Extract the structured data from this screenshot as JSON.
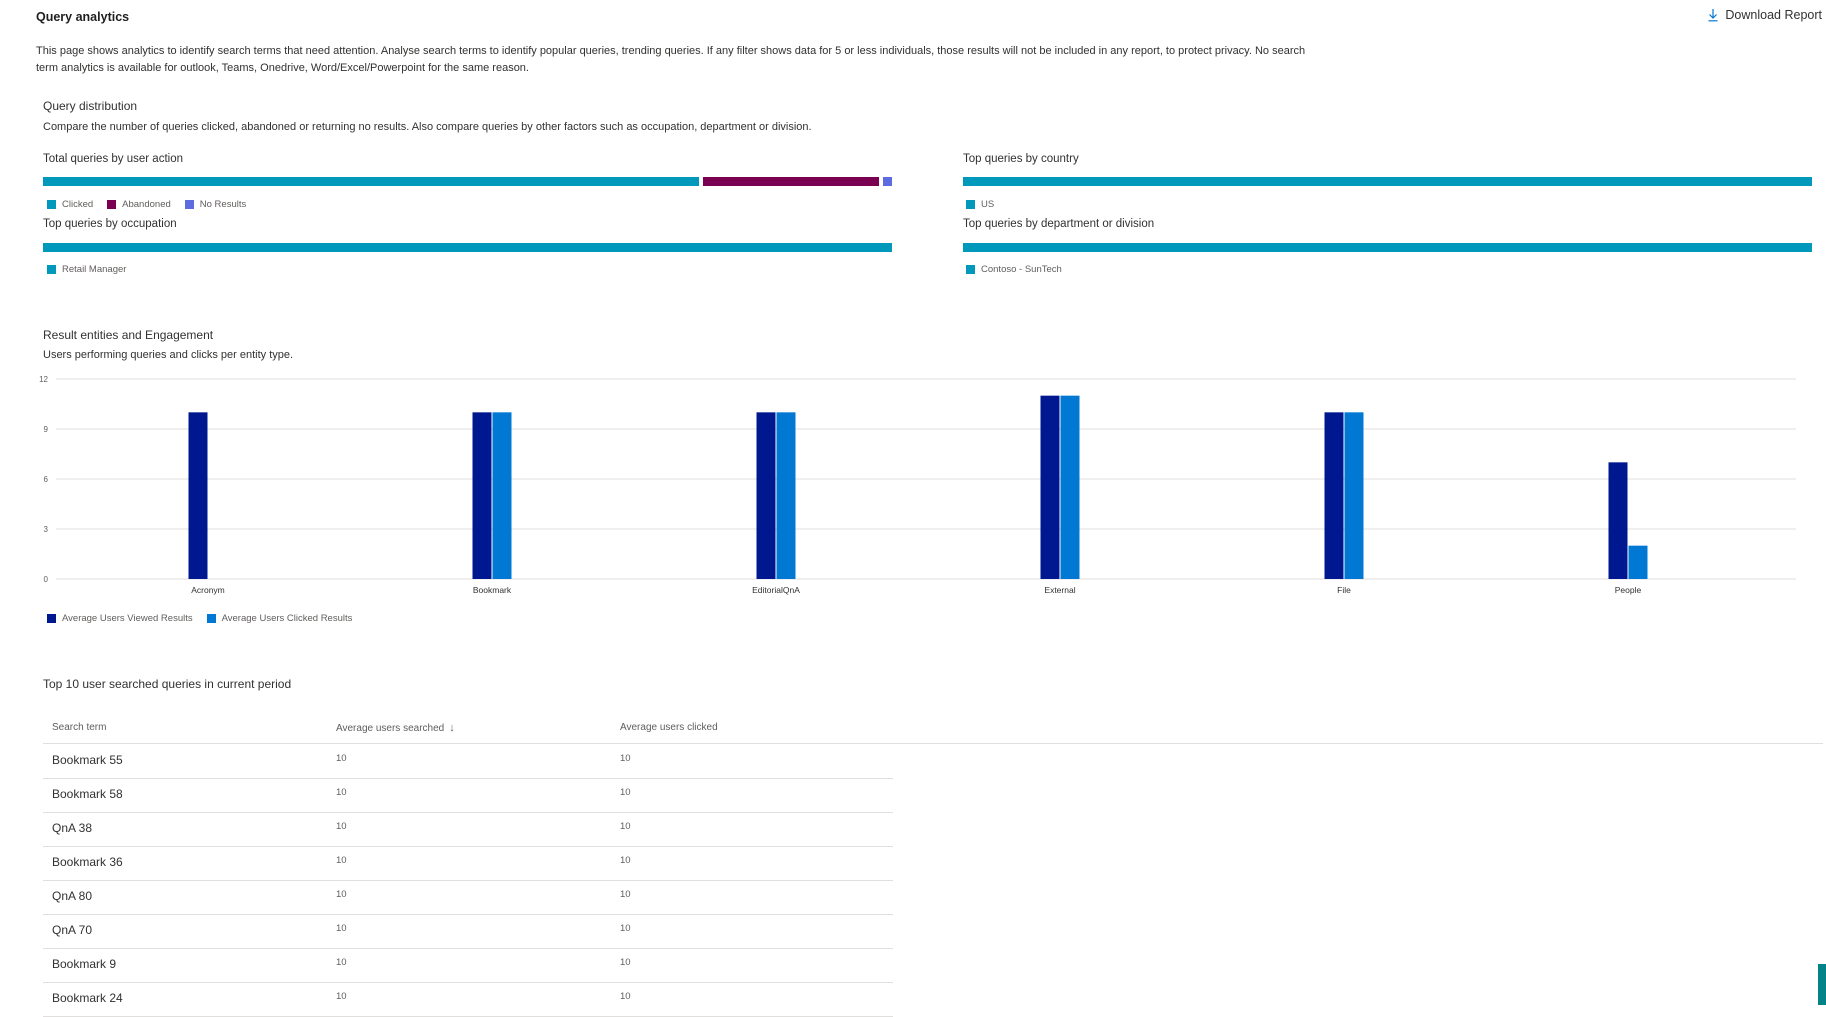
{
  "header": {
    "title": "Query analytics",
    "download_label": "Download Report",
    "download_icon": "download-icon",
    "description": "This page shows analytics to identify search terms that need attention. Analyse search terms to identify popular queries, trending queries. If any filter shows data for 5 or less individuals, those results will not be included in any report, to protect privacy. No search term analytics is available for outlook, Teams, Onedrive, Word/Excel/Powerpoint for the same reason."
  },
  "distribution": {
    "title": "Query distribution",
    "subtitle": "Compare the number of queries clicked, abandoned or returning no results. Also compare queries by other factors such as occupation, department or division.",
    "user_action": {
      "label": "Total queries by user action",
      "segments": [
        {
          "name": "Clicked",
          "share": 0.776,
          "color": "#0099bc"
        },
        {
          "name": "Abandoned",
          "share": 0.208,
          "color": "#7a0051"
        },
        {
          "name": "No Results",
          "share": 0.011,
          "color": "#5c6bdf"
        }
      ]
    },
    "country": {
      "label": "Top queries by country",
      "segments": [
        {
          "name": "US",
          "share": 1.0,
          "color": "#0099bc"
        }
      ]
    },
    "occupation": {
      "label": "Top queries by occupation",
      "segments": [
        {
          "name": "Retail Manager",
          "share": 1.0,
          "color": "#0099bc"
        }
      ]
    },
    "department": {
      "label": "Top queries by department or division",
      "segments": [
        {
          "name": "Contoso - SunTech",
          "share": 1.0,
          "color": "#0099bc"
        }
      ]
    }
  },
  "engagement": {
    "title": "Result entities and Engagement",
    "subtitle": "Users performing queries and clicks per entity type."
  },
  "chart_data": {
    "type": "bar",
    "title": "",
    "xlabel": "",
    "ylabel": "",
    "ylim": [
      0,
      12
    ],
    "yticks": [
      "0",
      "3",
      "6",
      "9",
      "12"
    ],
    "categories": [
      "Acronym",
      "Bookmark",
      "EditorialQnA",
      "External",
      "File",
      "People"
    ],
    "series": [
      {
        "name": "Average Users Viewed Results",
        "color": "#00188f",
        "values": [
          10,
          10,
          10,
          11,
          10,
          7
        ]
      },
      {
        "name": "Average Users Clicked Results",
        "color": "#0078d4",
        "values": [
          0,
          10,
          10,
          11,
          10,
          2
        ]
      }
    ],
    "grid": true,
    "legend": "bottom-left"
  },
  "top_queries": {
    "title": "Top 10 user searched queries in current period",
    "columns": [
      "Search term",
      "Average users searched",
      "Average users clicked"
    ],
    "sort_icon": "arrow-down-icon",
    "rows": [
      {
        "term": "Bookmark 55",
        "searched": "10",
        "clicked": "10"
      },
      {
        "term": "Bookmark 58",
        "searched": "10",
        "clicked": "10"
      },
      {
        "term": "QnA 38",
        "searched": "10",
        "clicked": "10"
      },
      {
        "term": "Bookmark 36",
        "searched": "10",
        "clicked": "10"
      },
      {
        "term": "QnA 80",
        "searched": "10",
        "clicked": "10"
      },
      {
        "term": "QnA 70",
        "searched": "10",
        "clicked": "10"
      },
      {
        "term": "Bookmark 9",
        "searched": "10",
        "clicked": "10"
      },
      {
        "term": "Bookmark 24",
        "searched": "10",
        "clicked": "10"
      }
    ]
  }
}
